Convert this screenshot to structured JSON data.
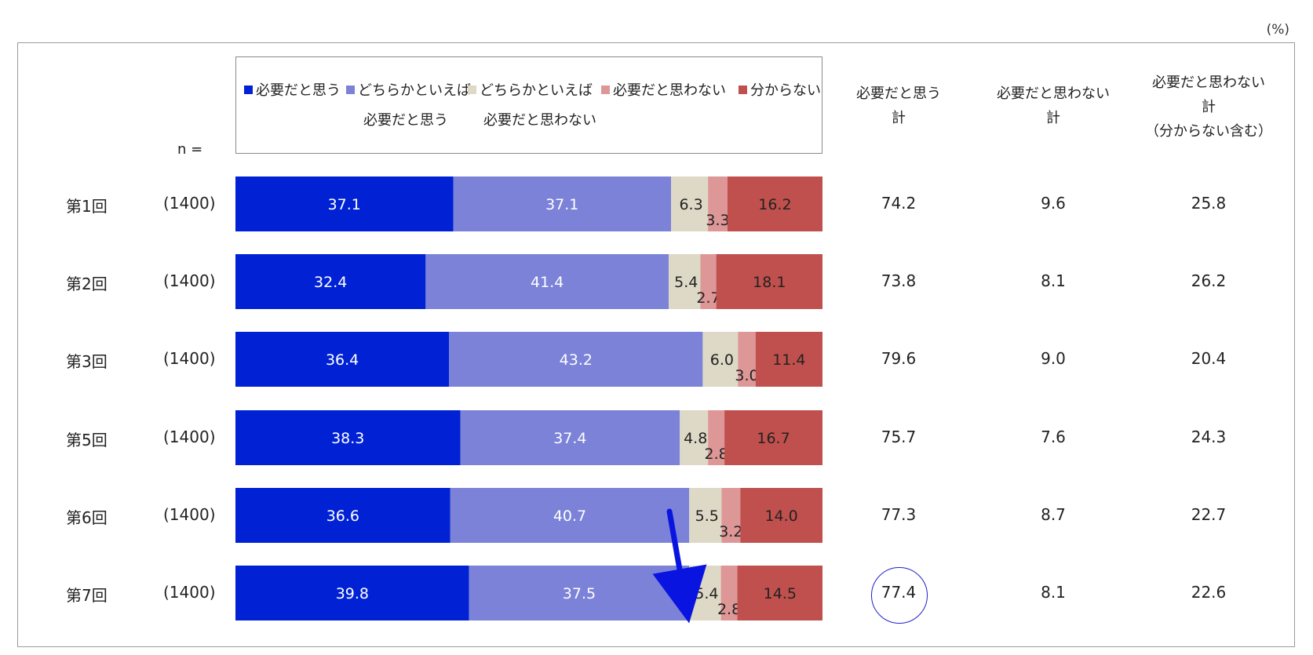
{
  "unit_label": "(%)",
  "n_label": "n =",
  "legend": [
    {
      "line1": "必要だと思う",
      "line2": "",
      "color": "#0022d4"
    },
    {
      "line1": "どちらかといえば",
      "line2": "必要だと思う",
      "color": "#7b82d8"
    },
    {
      "line1": "どちらかといえば",
      "line2": "必要だと思わない",
      "color": "#ddd9c6"
    },
    {
      "line1": "必要だと思わない",
      "line2": "",
      "color": "#dd9797"
    },
    {
      "line1": "分からない",
      "line2": "",
      "color": "#c0504d"
    }
  ],
  "columns": {
    "col1": {
      "line1": "必要だと思う",
      "line2": "計",
      "line3": ""
    },
    "col2": {
      "line1": "必要だと思わない",
      "line2": "計",
      "line3": ""
    },
    "col3": {
      "line1": "必要だと思わない",
      "line2": "計",
      "line3": "（分からない含む）"
    }
  },
  "rows": [
    {
      "label": "第1回",
      "n": "(1400)",
      "tot1": "74.2",
      "tot2": "9.6",
      "tot3": "25.8"
    },
    {
      "label": "第2回",
      "n": "(1400)",
      "tot1": "73.8",
      "tot2": "8.1",
      "tot3": "26.2"
    },
    {
      "label": "第3回",
      "n": "(1400)",
      "tot1": "79.6",
      "tot2": "9.0",
      "tot3": "20.4"
    },
    {
      "label": "第5回",
      "n": "(1400)",
      "tot1": "75.7",
      "tot2": "7.6",
      "tot3": "24.3"
    },
    {
      "label": "第6回",
      "n": "(1400)",
      "tot1": "77.3",
      "tot2": "8.7",
      "tot3": "22.7"
    },
    {
      "label": "第7回",
      "n": "(1400)",
      "tot1": "77.4",
      "tot2": "8.1",
      "tot3": "22.6"
    }
  ],
  "chart_data": {
    "type": "bar",
    "orientation": "horizontal",
    "stacked": true,
    "xlim": [
      0,
      100
    ],
    "categories": [
      "第1回",
      "第2回",
      "第3回",
      "第5回",
      "第6回",
      "第7回"
    ],
    "series": [
      {
        "name": "必要だと思う",
        "color": "#0022d4",
        "values": [
          37.1,
          32.4,
          36.4,
          38.3,
          36.6,
          39.8
        ],
        "labels": [
          "37.1",
          "32.4",
          "36.4",
          "38.3",
          "36.6",
          "39.8"
        ]
      },
      {
        "name": "どちらかといえば必要だと思う",
        "color": "#7b82d8",
        "values": [
          37.1,
          41.4,
          43.2,
          37.4,
          40.7,
          37.5
        ],
        "labels": [
          "37.1",
          "41.4",
          "43.2",
          "37.4",
          "40.7",
          "37.5"
        ]
      },
      {
        "name": "どちらかといえば必要だと思わない",
        "color": "#ddd9c6",
        "values": [
          6.3,
          5.4,
          6.0,
          4.8,
          5.5,
          5.4
        ],
        "labels": [
          "6.3",
          "5.4",
          "6.0",
          "4.8",
          "5.5",
          "5.4"
        ]
      },
      {
        "name": "必要だと思わない",
        "color": "#dd9797",
        "values": [
          3.3,
          2.7,
          3.0,
          2.8,
          3.2,
          2.8
        ],
        "labels": [
          "3.3",
          "2.7",
          "3.0",
          "2.8",
          "3.2",
          "2.8"
        ]
      },
      {
        "name": "分からない",
        "color": "#c0504d",
        "values": [
          16.2,
          18.1,
          11.4,
          16.7,
          14.0,
          14.5
        ],
        "labels": [
          "16.2",
          "18.1",
          "11.4",
          "16.7",
          "14.0",
          "14.5"
        ]
      }
    ],
    "label_colors": [
      "#ffffff",
      "#ffffff",
      "#222222",
      "#222222",
      "#222222"
    ],
    "highlighted_total": "77.4",
    "arrow_color": "#0a14e0"
  }
}
